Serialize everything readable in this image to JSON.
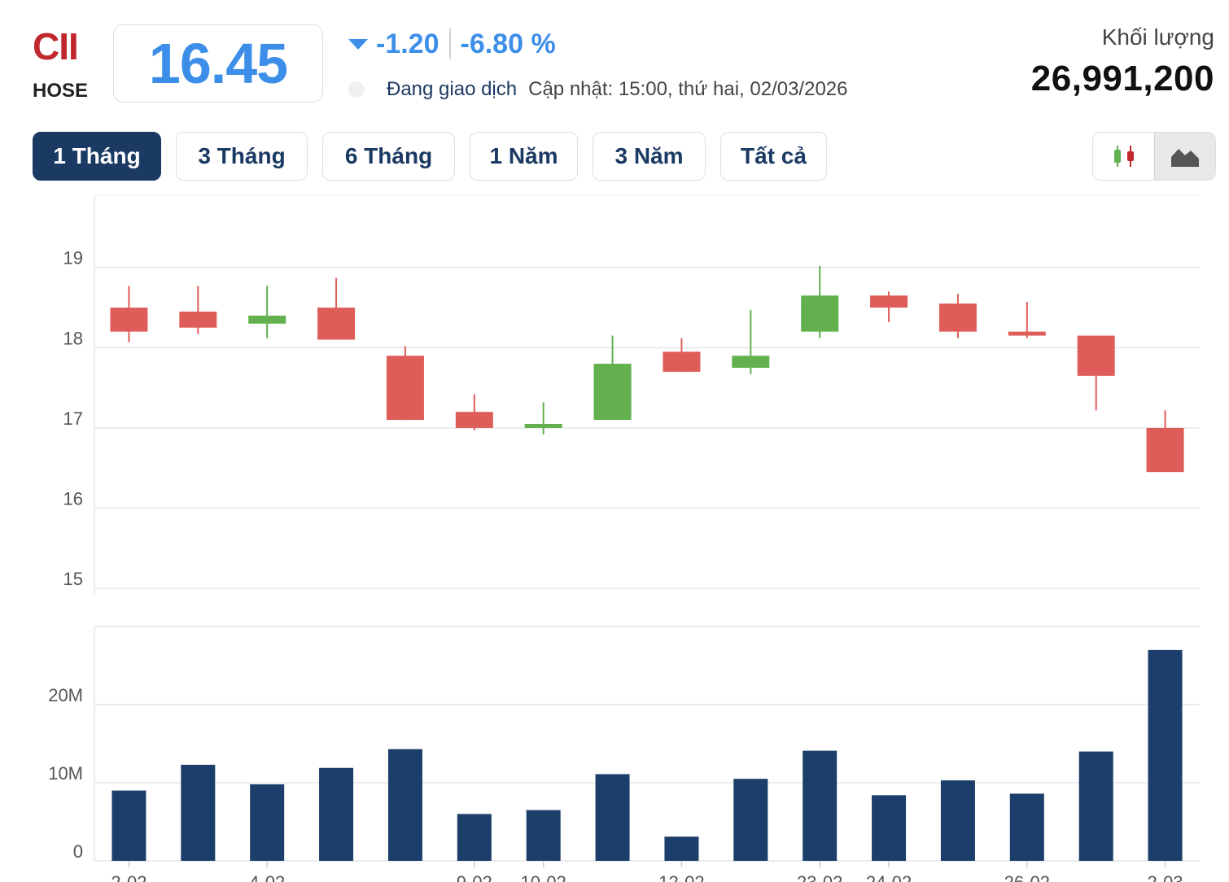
{
  "header": {
    "ticker": "CII",
    "exchange": "HOSE",
    "price": "16.45",
    "change": "-1.20",
    "change_percent": "-6.80 %",
    "status": "Đang giao dịch",
    "updated": "Cập nhật: 15:00, thứ hai, 02/03/2026",
    "volume_label": "Khối lượng",
    "volume_value": "26,991,200"
  },
  "tabs": [
    {
      "label": "1 Tháng",
      "active": true
    },
    {
      "label": "3 Tháng",
      "active": false
    },
    {
      "label": "6 Tháng",
      "active": false
    },
    {
      "label": "1 Năm",
      "active": false
    },
    {
      "label": "3 Năm",
      "active": false
    },
    {
      "label": "Tất cả",
      "active": false
    }
  ],
  "chart_type_toggle": [
    {
      "icon": "candlestick-icon",
      "selected": false
    },
    {
      "icon": "area-chart-icon",
      "selected": true
    }
  ],
  "colors": {
    "up": "#62b04e",
    "down": "#df5d59",
    "volume": "#1b3f6a",
    "accent": "#3d8ee8",
    "ticker": "#c0282d",
    "navy": "#1b3a63"
  },
  "chart_data": {
    "type": "candlestick",
    "price_axis": {
      "ticks": [
        "15",
        "16",
        "17",
        "18",
        "19"
      ],
      "range": [
        14.9,
        19.9
      ]
    },
    "volume_axis": {
      "ticks": [
        "0",
        "10M",
        "20M"
      ],
      "range": [
        0,
        30000000
      ]
    },
    "candles": [
      {
        "open": 18.5,
        "close": 18.2,
        "high": 18.77,
        "low": 18.07
      },
      {
        "open": 18.45,
        "close": 18.25,
        "high": 18.77,
        "low": 18.17
      },
      {
        "open": 18.3,
        "close": 18.4,
        "high": 18.77,
        "low": 18.12
      },
      {
        "open": 18.5,
        "close": 18.1,
        "high": 18.87,
        "low": 18.1
      },
      {
        "open": 17.9,
        "close": 17.1,
        "high": 18.02,
        "low": 17.1
      },
      {
        "open": 17.2,
        "close": 17.0,
        "high": 17.42,
        "low": 16.97
      },
      {
        "open": 17.0,
        "close": 17.05,
        "high": 17.32,
        "low": 16.92
      },
      {
        "open": 17.1,
        "close": 17.8,
        "high": 18.15,
        "low": 17.1
      },
      {
        "open": 17.95,
        "close": 17.7,
        "high": 18.12,
        "low": 17.7
      },
      {
        "open": 17.75,
        "close": 17.9,
        "high": 18.47,
        "low": 17.67
      },
      {
        "open": 18.2,
        "close": 18.65,
        "high": 19.02,
        "low": 18.12
      },
      {
        "open": 18.65,
        "close": 18.5,
        "high": 18.7,
        "low": 18.32
      },
      {
        "open": 18.55,
        "close": 18.2,
        "high": 18.67,
        "low": 18.12
      },
      {
        "open": 18.2,
        "close": 18.15,
        "high": 18.57,
        "low": 18.12
      },
      {
        "open": 18.15,
        "close": 17.65,
        "high": 18.15,
        "low": 17.22
      },
      {
        "open": 17.0,
        "close": 16.45,
        "high": 17.22,
        "low": 16.45
      }
    ],
    "volumes": [
      9000000,
      12300000,
      9800000,
      11900000,
      14300000,
      6000000,
      6500000,
      11100000,
      3100000,
      10500000,
      14100000,
      8400000,
      10300000,
      8600000,
      14000000,
      26991200
    ],
    "x_ticks": [
      {
        "label": "2-02",
        "index": 0
      },
      {
        "label": "4-02",
        "index": 2
      },
      {
        "label": "9-02",
        "index": 5
      },
      {
        "label": "10-02",
        "index": 6
      },
      {
        "label": "12-02",
        "index": 8
      },
      {
        "label": "23-02",
        "index": 10
      },
      {
        "label": "24-02",
        "index": 11
      },
      {
        "label": "26-02",
        "index": 13
      },
      {
        "label": "2-03",
        "index": 15
      }
    ]
  }
}
